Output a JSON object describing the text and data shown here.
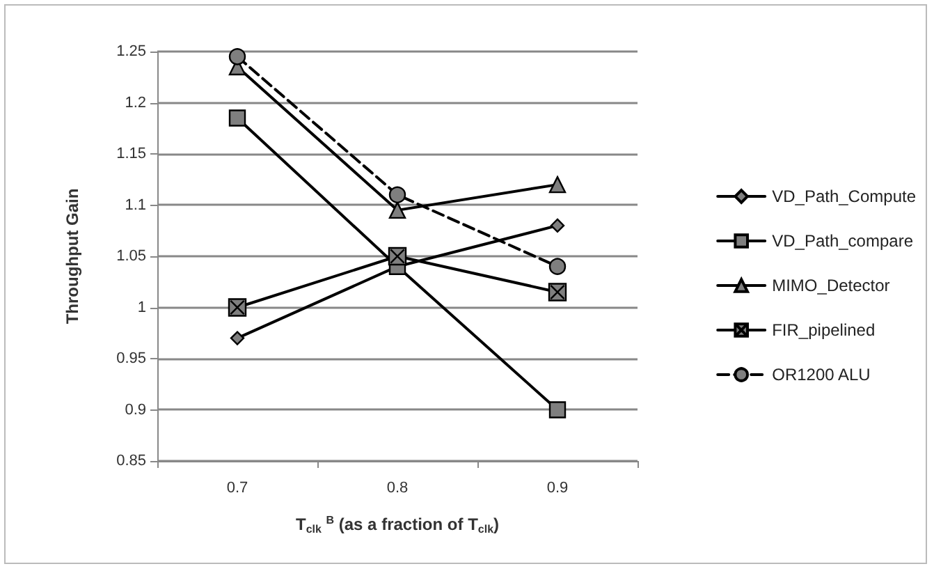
{
  "chart_data": {
    "type": "line",
    "xlabel": "T$_{clk}$ $^{B}$ (as a fraction of T$_{clk}$)",
    "ylabel": "Throughput Gain",
    "categories": [
      "0.7",
      "0.8",
      "0.9"
    ],
    "ylim": [
      0.85,
      1.25
    ],
    "yticks": [
      0.85,
      0.9,
      0.95,
      1,
      1.05,
      1.1,
      1.15,
      1.2,
      1.25
    ],
    "grid": "y",
    "legend": "right",
    "series": [
      {
        "name": "VD_Path_Compute",
        "color": "#000000",
        "marker": "diamond",
        "line_style": "solid",
        "values": [
          0.97,
          1.04,
          1.08
        ]
      },
      {
        "name": "VD_Path_compare",
        "color": "#000000",
        "marker": "square",
        "line_style": "solid",
        "values": [
          1.185,
          1.04,
          0.9
        ]
      },
      {
        "name": "MIMO_Detector",
        "color": "#000000",
        "marker": "triangle",
        "line_style": "solid",
        "values": [
          1.235,
          1.095,
          1.12
        ]
      },
      {
        "name": "FIR_pipelined",
        "color": "#000000",
        "marker": "cross",
        "line_style": "solid",
        "values": [
          1.0,
          1.05,
          1.015
        ]
      },
      {
        "name": "OR1200 ALU",
        "color": "#000000",
        "marker": "circle",
        "line_style": "dashed",
        "values": [
          1.245,
          1.11,
          1.04
        ]
      }
    ]
  }
}
